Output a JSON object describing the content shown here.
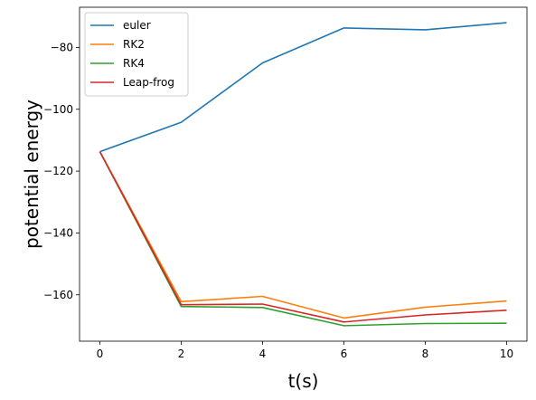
{
  "chart_data": {
    "type": "line",
    "title": "",
    "xlabel": "t(s)",
    "ylabel": "potential energy",
    "x": [
      0,
      2,
      4,
      6,
      8,
      10
    ],
    "xlim": [
      -0.5,
      10.5
    ],
    "ylim": [
      -175,
      -67
    ],
    "xticks": [
      0,
      2,
      4,
      6,
      8,
      10
    ],
    "yticks": [
      -80,
      -100,
      -120,
      -140,
      -160
    ],
    "grid": false,
    "legend_position": "top-left",
    "series": [
      {
        "name": "euler",
        "color": "#1f77b4",
        "values": [
          -113.7,
          -104.2,
          -85.0,
          -73.7,
          -74.3,
          -72.0
        ]
      },
      {
        "name": "RK2",
        "color": "#ff7f0e",
        "values": [
          -113.7,
          -162.2,
          -160.5,
          -167.5,
          -164.0,
          -162.0
        ]
      },
      {
        "name": "RK4",
        "color": "#2ca02c",
        "values": [
          -113.7,
          -163.8,
          -164.1,
          -170.0,
          -169.3,
          -169.2
        ]
      },
      {
        "name": "Leap-frog",
        "color": "#d62728",
        "values": [
          -113.7,
          -163.2,
          -163.0,
          -168.8,
          -166.5,
          -165.0
        ]
      }
    ]
  }
}
